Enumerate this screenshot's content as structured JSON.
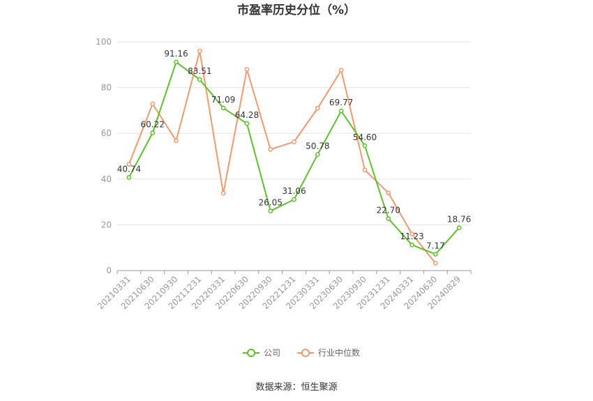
{
  "chart_data": {
    "type": "line",
    "title": "市盈率历史分位（%）",
    "source": "数据来源：恒生聚源",
    "xlabel": "",
    "ylabel": "",
    "ylim": [
      0,
      100
    ],
    "yticks": [
      0,
      20,
      40,
      60,
      80,
      100
    ],
    "grid": true,
    "legend_position": "bottom",
    "categories": [
      "20210331",
      "20210630",
      "20210930",
      "20211231",
      "20220331",
      "20220630",
      "20220930",
      "20221231",
      "20230331",
      "20230630",
      "20230930",
      "20231231",
      "20240331",
      "20240630",
      "20240829"
    ],
    "series": [
      {
        "name": "公司",
        "color": "#5cc229",
        "show_labels": true,
        "values": [
          40.74,
          60.22,
          91.16,
          83.51,
          71.09,
          64.28,
          26.05,
          31.06,
          50.78,
          69.77,
          54.6,
          22.7,
          11.23,
          7.17,
          18.76
        ],
        "labels": [
          "40.74",
          "60.22",
          "91.16",
          "83.51",
          "71.09",
          "64.28",
          "26.05",
          "31.06",
          "50.78",
          "69.77",
          "54.60",
          "22.70",
          "11.23",
          "7.17",
          "18.76"
        ]
      },
      {
        "name": "行业中位数",
        "color": "#f5986b",
        "show_labels": false,
        "values": [
          46.5,
          72.9,
          56.8,
          96.0,
          33.8,
          88.0,
          53.0,
          56.3,
          71.0,
          87.6,
          44.0,
          34.0,
          16.0,
          3.2,
          null
        ]
      }
    ]
  }
}
